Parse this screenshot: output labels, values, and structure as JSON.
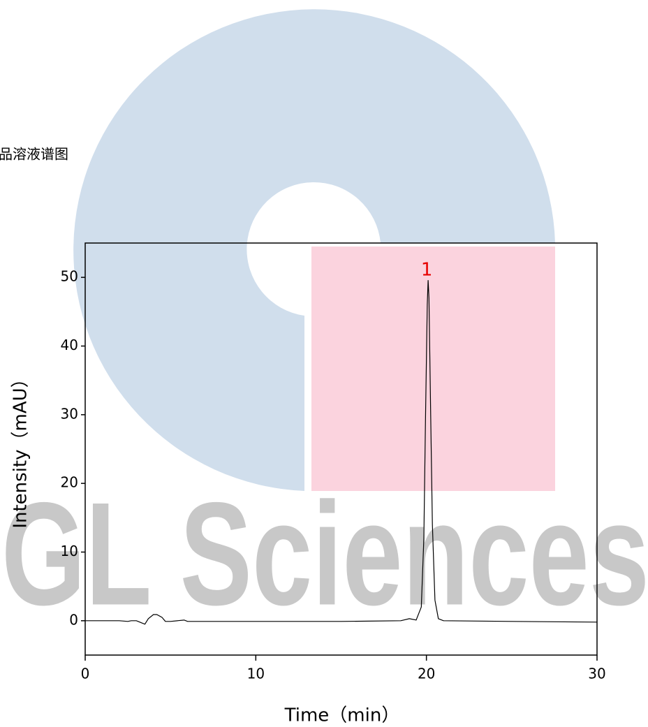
{
  "chart_data": {
    "type": "line",
    "title": "品溶液谱图",
    "watermark": "GL Sciences",
    "x_label": "Time（min）",
    "y_label": "Intensity（mAU）",
    "annotations": [
      {
        "text": "1",
        "x": 20.1,
        "y": 49.6,
        "color": "#e60000"
      }
    ],
    "xlim": [
      0,
      30
    ],
    "xticks": [
      0,
      10,
      20,
      30
    ],
    "ylim": [
      -5,
      55
    ],
    "yticks": [
      0,
      10,
      20,
      30,
      40,
      50
    ],
    "grid": false,
    "series": [
      {
        "color": "#000000",
        "x": [
          0,
          1,
          2,
          2.5,
          2.7,
          3,
          3.3,
          3.5,
          3.7,
          4,
          4.2,
          4.5,
          4.7,
          5,
          5.8,
          6,
          7,
          10,
          15,
          18.5,
          19,
          19.4,
          19.7,
          19.85,
          19.95,
          20.05,
          20.1,
          20.15,
          20.25,
          20.35,
          20.5,
          20.7,
          21,
          25,
          30
        ],
        "values": [
          0,
          0,
          0,
          -0.1,
          0,
          0,
          -0.3,
          -0.5,
          0.3,
          0.9,
          0.9,
          0.5,
          -0.1,
          -0.1,
          0.1,
          -0.1,
          -0.1,
          -0.1,
          -0.1,
          0,
          0.3,
          0.1,
          2,
          12,
          30,
          46,
          49.6,
          47,
          30,
          14,
          3,
          0.3,
          0,
          -0.1,
          -0.2
        ]
      }
    ]
  }
}
